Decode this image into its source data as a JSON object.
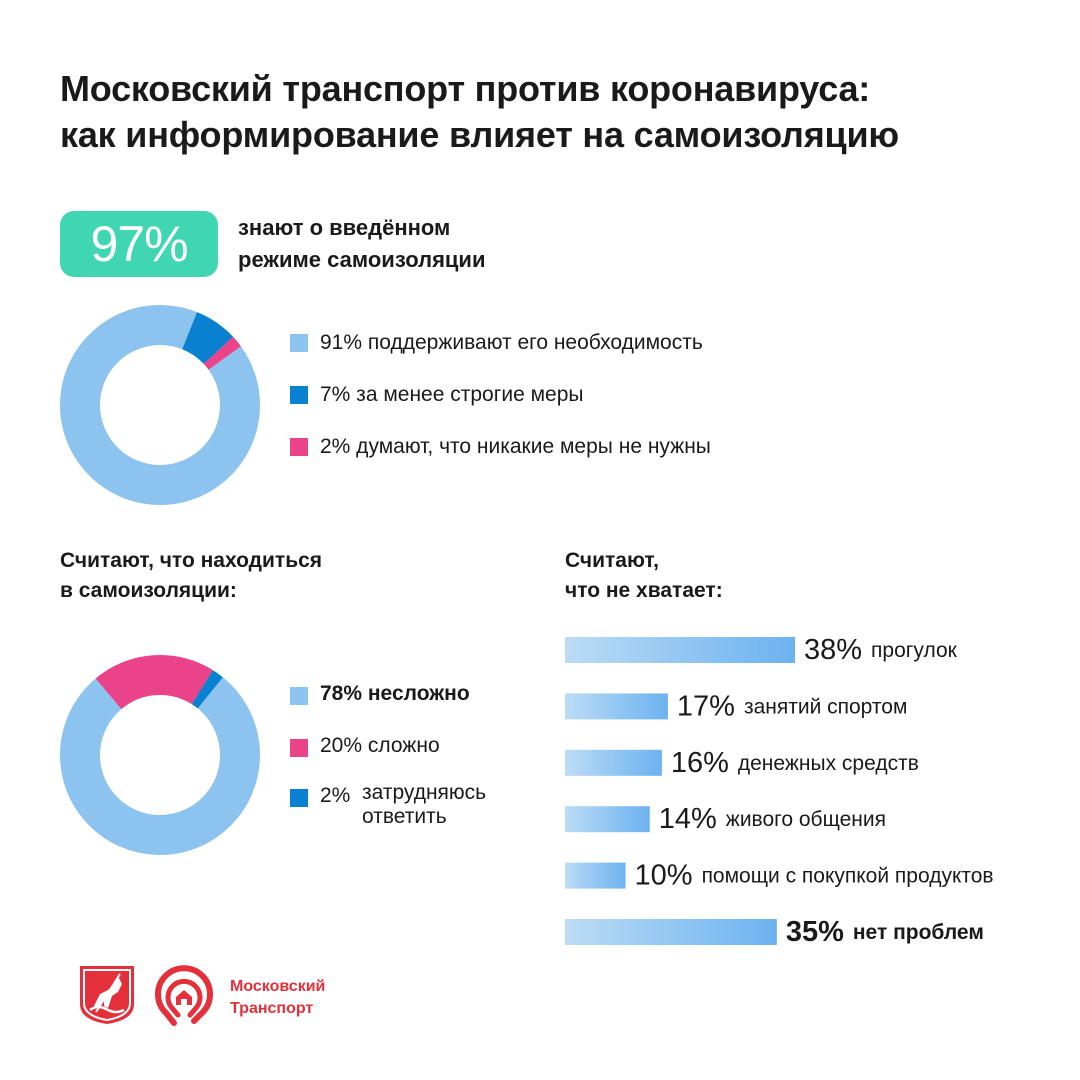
{
  "title": {
    "line1": "Московский транспорт против коронавируса:",
    "line2": "как информирование влияет на самоизоляцию"
  },
  "headline": {
    "value": "97%",
    "text_line1": "знают о введённом",
    "text_line2": "режиме самоизоляции",
    "color": "#3fd6b1"
  },
  "section_left": {
    "line1": "Считают, что находиться",
    "line2": "в самоизоляции:"
  },
  "section_right": {
    "line1": "Считают,",
    "line2": "что не хватает:"
  },
  "chart_data": [
    {
      "type": "pie",
      "variant": "donut",
      "legend_position": "right",
      "slices": [
        {
          "label": "91% поддерживают его необходимость",
          "value": 91,
          "color": "#8cc3ef"
        },
        {
          "label": "7% за менее строгие меры",
          "value": 7,
          "color": "#0a80d0"
        },
        {
          "label": "2% думают, что никакие меры не нужны",
          "value": 2,
          "color": "#ea4389"
        }
      ]
    },
    {
      "type": "pie",
      "variant": "donut",
      "legend_position": "right",
      "slices": [
        {
          "pct": "78%",
          "label": "несложно",
          "value": 78,
          "color": "#8cc3ef",
          "bold": true
        },
        {
          "pct": "20%",
          "label": "сложно",
          "value": 20,
          "color": "#ea4389",
          "bold": false
        },
        {
          "pct": "2%",
          "label": "затрудняюсь ответить",
          "label_line1": "затрудняюсь",
          "label_line2": "ответить",
          "value": 2,
          "color": "#0a80d0",
          "bold": false
        }
      ]
    },
    {
      "type": "bar",
      "orientation": "horizontal",
      "gradient": [
        "#bcdcf5",
        "#6cb2f0"
      ],
      "bars": [
        {
          "value": 38,
          "pct": "38%",
          "label": "прогулок",
          "bold": false
        },
        {
          "value": 17,
          "pct": "17%",
          "label": "занятий спортом",
          "bold": false
        },
        {
          "value": 16,
          "pct": "16%",
          "label": "денежных средств",
          "bold": false
        },
        {
          "value": 14,
          "pct": "14%",
          "label": "живого общения",
          "bold": false
        },
        {
          "value": 10,
          "pct": "10%",
          "label": "помощи с покупкой продуктов",
          "bold": false
        },
        {
          "value": 35,
          "pct": "35%",
          "label": "нет проблем",
          "bold": true
        }
      ]
    }
  ],
  "brand": {
    "line1": "Московский",
    "line2": "Транспорт",
    "color": "#e4303a",
    "icons": [
      "moscow-coat-of-arms-icon",
      "moscow-transport-logo-icon"
    ]
  }
}
